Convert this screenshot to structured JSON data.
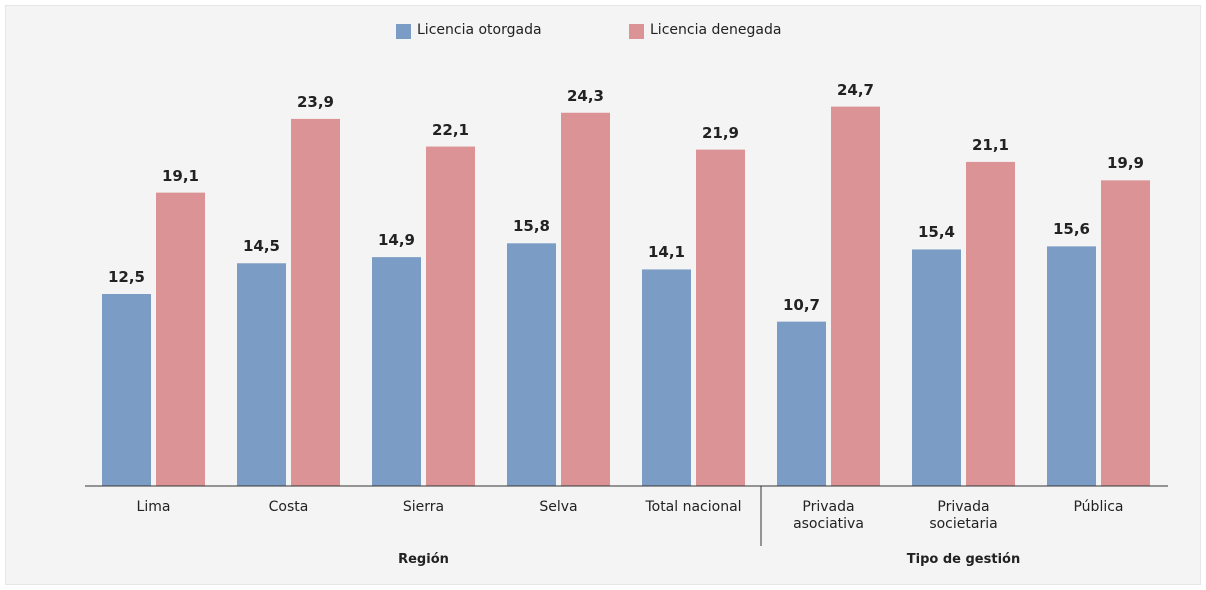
{
  "chart_data": {
    "type": "bar",
    "categories": [
      "Lima",
      "Costa",
      "Sierra",
      "Selva",
      "Total nacional",
      "Privada\nasociativa",
      "Privada\nsocietaria",
      "Pública"
    ],
    "group_labels": [
      "Región",
      "Tipo de gestión"
    ],
    "series": [
      {
        "name": "Licencia otorgada",
        "color": "#7b9cc4",
        "values": [
          12.5,
          14.5,
          14.9,
          15.8,
          14.1,
          10.7,
          15.4,
          15.6
        ],
        "value_labels": [
          "12,5",
          "14,5",
          "14,9",
          "15,8",
          "14,1",
          "10,7",
          "15,4",
          "15,6"
        ]
      },
      {
        "name": "Licencia denegada",
        "color": "#dc9396",
        "values": [
          19.1,
          23.9,
          22.1,
          24.3,
          21.9,
          24.7,
          21.1,
          19.9
        ],
        "value_labels": [
          "19,1",
          "23,9",
          "22,1",
          "24,3",
          "21,9",
          "24,7",
          "21,1",
          "19,9"
        ]
      }
    ],
    "legend": "top"
  }
}
